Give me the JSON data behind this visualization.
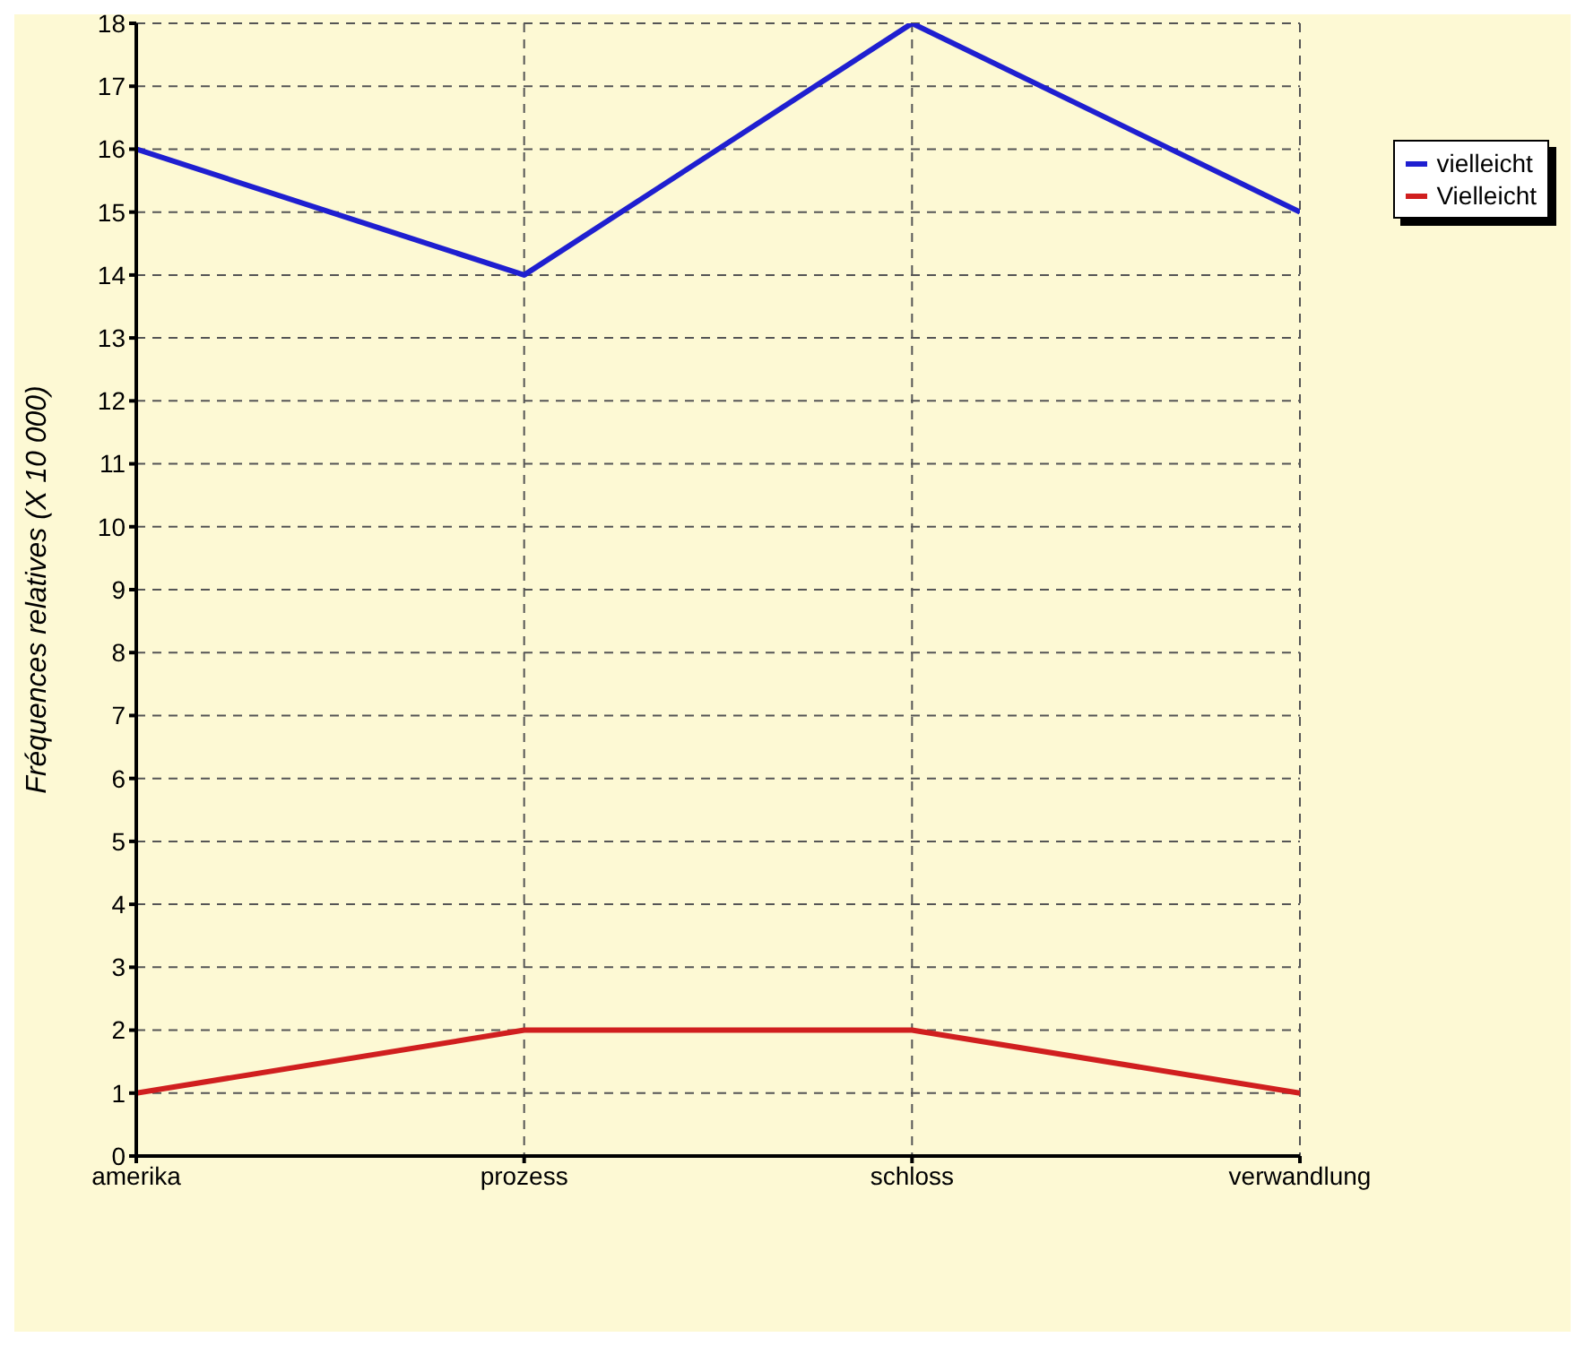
{
  "chart_data": {
    "type": "line",
    "ylabel": "Fréquences relatives (X 10 000)",
    "categories": [
      "amerika",
      "prozess",
      "schloss",
      "verwandlung"
    ],
    "series": [
      {
        "name": "vielleicht",
        "color": "#1f1fd0",
        "values": [
          16,
          14,
          18,
          15
        ]
      },
      {
        "name": "Vielleicht",
        "color": "#d01f1f",
        "values": [
          1,
          2,
          2,
          1
        ]
      }
    ],
    "ylim": [
      0,
      18
    ],
    "yticks": [
      0,
      1,
      2,
      3,
      4,
      5,
      6,
      7,
      8,
      9,
      10,
      11,
      12,
      13,
      14,
      15,
      16,
      17,
      18
    ],
    "grid": true,
    "legend": "top right",
    "marker": "none",
    "line_style": "solid"
  }
}
